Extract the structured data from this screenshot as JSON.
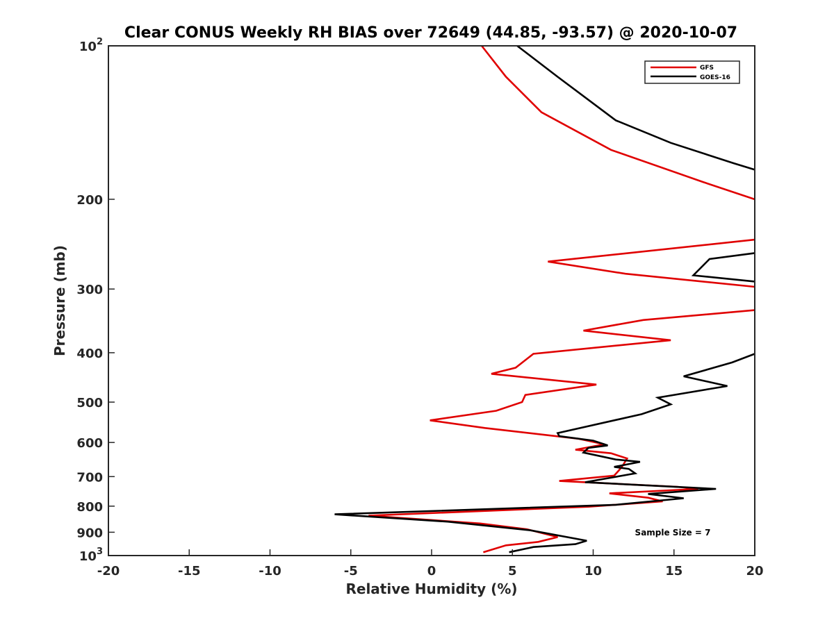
{
  "chart_data": {
    "type": "line",
    "title": "Clear CONUS Weekly RH BIAS over 72649 (44.85, -93.57) @ 2020-10-07",
    "xlabel": "Relative Humidity (%)",
    "ylabel": "Pressure (mb)",
    "xlim": [
      -20,
      20
    ],
    "ylim": [
      100,
      1000
    ],
    "y_scale": "log",
    "y_reversed": true,
    "grid": false,
    "legend_position": "top-right",
    "x_ticks": [
      "-20",
      "-15",
      "-10",
      "-5",
      "0",
      "5",
      "10",
      "15",
      "20"
    ],
    "y_ticks": [
      {
        "value": 100,
        "base": "10",
        "exp": "2"
      },
      {
        "value": 200,
        "base": "200",
        "exp": ""
      },
      {
        "value": 300,
        "base": "300",
        "exp": ""
      },
      {
        "value": 400,
        "base": "400",
        "exp": ""
      },
      {
        "value": 500,
        "base": "500",
        "exp": ""
      },
      {
        "value": 600,
        "base": "600",
        "exp": ""
      },
      {
        "value": 700,
        "base": "700",
        "exp": ""
      },
      {
        "value": 800,
        "base": "800",
        "exp": ""
      },
      {
        "value": 900,
        "base": "900",
        "exp": ""
      },
      {
        "value": 1000,
        "base": "10",
        "exp": "3"
      }
    ],
    "annotation": "Sample Size = 7",
    "series": [
      {
        "name": "GFS",
        "color": "#e00000",
        "points": [
          [
            3.1,
            100
          ],
          [
            4.6,
            115
          ],
          [
            6.8,
            135
          ],
          [
            11.1,
            160
          ],
          [
            16.8,
            185
          ],
          [
            20.0,
            200
          ],
          [
            null,
            240
          ],
          [
            20.0,
            240
          ],
          [
            7.2,
            265
          ],
          [
            12.0,
            280
          ],
          [
            20.0,
            297
          ],
          [
            null,
            330
          ],
          [
            20.0,
            330
          ],
          [
            13.1,
            345
          ],
          [
            9.4,
            362
          ],
          [
            14.8,
            378
          ],
          [
            6.3,
            402
          ],
          [
            5.2,
            428
          ],
          [
            3.7,
            440
          ],
          [
            10.2,
            462
          ],
          [
            5.8,
            484
          ],
          [
            5.6,
            500
          ],
          [
            4.0,
            520
          ],
          [
            -0.1,
            543
          ],
          [
            3.3,
            562
          ],
          [
            9.1,
            590
          ],
          [
            10.7,
            605
          ],
          [
            8.9,
            620
          ],
          [
            11.1,
            630
          ],
          [
            12.1,
            645
          ],
          [
            11.8,
            668
          ],
          [
            11.6,
            680
          ],
          [
            11.3,
            697
          ],
          [
            7.9,
            714
          ],
          [
            15.2,
            733
          ],
          [
            16.5,
            740
          ],
          [
            11.0,
            755
          ],
          [
            13.4,
            770
          ],
          [
            14.3,
            783
          ],
          [
            9.7,
            802
          ],
          [
            -3.9,
            835
          ],
          [
            3.0,
            865
          ],
          [
            5.9,
            888
          ],
          [
            7.8,
            920
          ],
          [
            6.6,
            940
          ],
          [
            4.6,
            955
          ],
          [
            3.2,
            985
          ]
        ]
      },
      {
        "name": "GOES-16",
        "color": "#000000",
        "points": [
          [
            5.3,
            100
          ],
          [
            7.8,
            115
          ],
          [
            11.4,
            140
          ],
          [
            14.8,
            155
          ],
          [
            18.7,
            170
          ],
          [
            20.0,
            175
          ],
          [
            null,
            255
          ],
          [
            20.0,
            255
          ],
          [
            17.2,
            262
          ],
          [
            16.2,
            282
          ],
          [
            20.0,
            290
          ],
          [
            null,
            402
          ],
          [
            20.0,
            402
          ],
          [
            18.6,
            418
          ],
          [
            15.6,
            445
          ],
          [
            18.3,
            465
          ],
          [
            14.0,
            490
          ],
          [
            14.8,
            505
          ],
          [
            13.0,
            528
          ],
          [
            7.8,
            575
          ],
          [
            7.9,
            583
          ],
          [
            10.0,
            595
          ],
          [
            10.9,
            608
          ],
          [
            9.7,
            615
          ],
          [
            9.4,
            628
          ],
          [
            11.4,
            648
          ],
          [
            12.9,
            655
          ],
          [
            11.3,
            670
          ],
          [
            12.2,
            676
          ],
          [
            12.6,
            690
          ],
          [
            9.5,
            718
          ],
          [
            17.6,
            740
          ],
          [
            13.4,
            757
          ],
          [
            15.6,
            772
          ],
          [
            11.4,
            795
          ],
          [
            -6.0,
            830
          ],
          [
            1.0,
            858
          ],
          [
            6.1,
            892
          ],
          [
            9.6,
            935
          ],
          [
            8.9,
            950
          ],
          [
            6.3,
            962
          ],
          [
            4.8,
            985
          ]
        ]
      }
    ]
  }
}
